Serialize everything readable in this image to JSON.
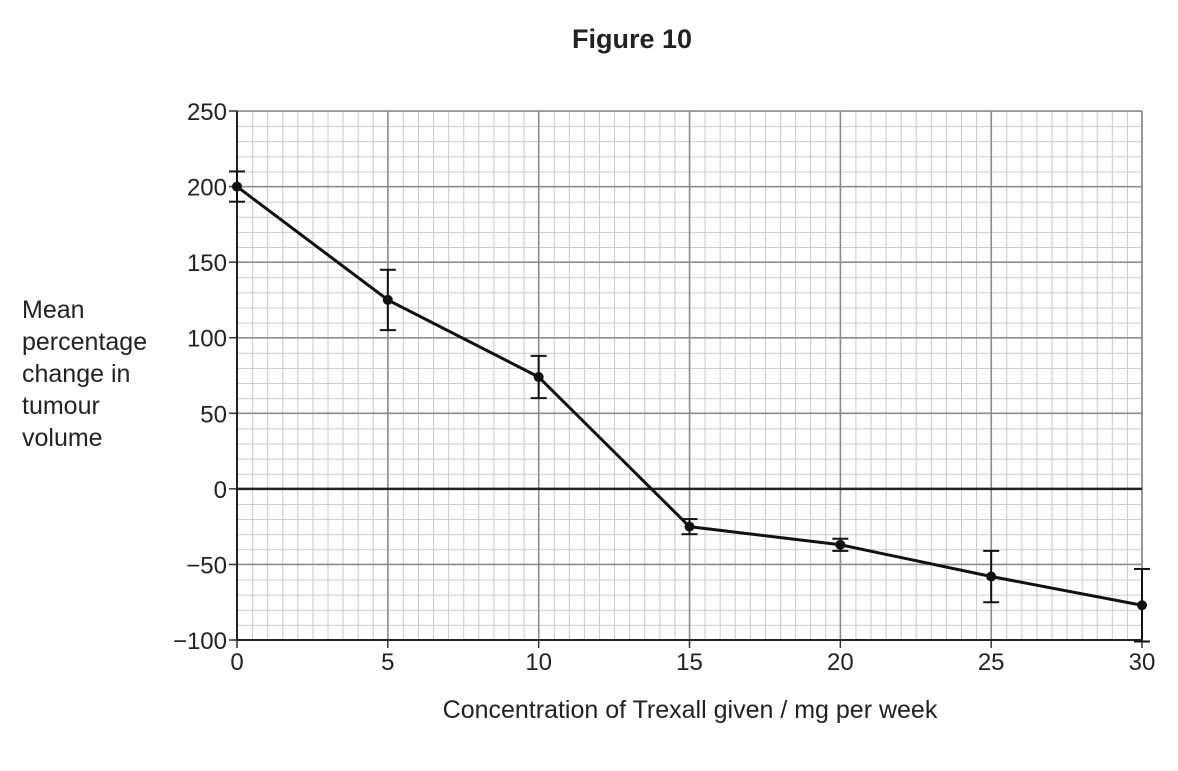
{
  "chart_data": {
    "type": "line",
    "title": "Figure 10",
    "xlabel": "Concentration of Trexall given / mg per week",
    "ylabel": [
      "Mean",
      "percentage",
      "change in",
      "tumour",
      "volume"
    ],
    "x": [
      0,
      5,
      10,
      15,
      20,
      25,
      30
    ],
    "values": [
      200,
      125,
      74,
      -25,
      -37,
      -58,
      -77
    ],
    "errors": [
      10,
      20,
      14,
      5,
      4,
      17,
      24
    ],
    "color": "#111111",
    "xlim": [
      0,
      30
    ],
    "xticks": [
      0,
      5,
      10,
      15,
      20,
      25,
      30
    ],
    "ylim": [
      -100,
      250
    ],
    "yticks": [
      {
        "value": -100,
        "label": "−100"
      },
      {
        "value": -50,
        "label": "−50"
      },
      0,
      50,
      100,
      150,
      200,
      250
    ],
    "grid": true
  }
}
